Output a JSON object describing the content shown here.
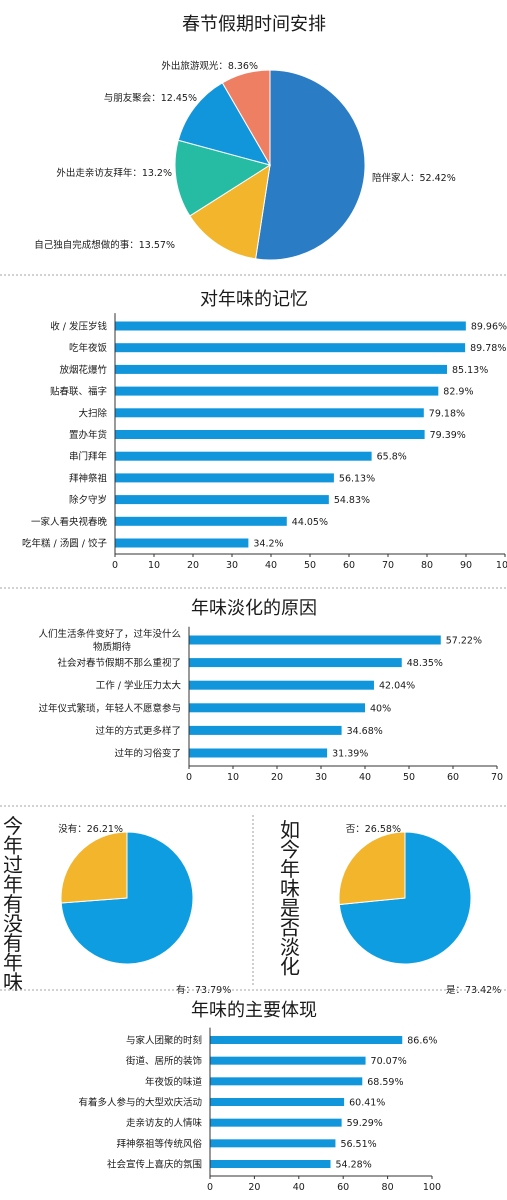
{
  "colors": {
    "blue_dark": "#2a7cc4",
    "blue_bar": "#1296db",
    "blue_pie": "#0e9de0",
    "yellow": "#f2b52c",
    "teal": "#26bba3",
    "salmon": "#ee7f62",
    "divider": "#888888"
  },
  "chart_data": [
    {
      "type": "pie",
      "title": "春节假期时间安排",
      "slices": [
        {
          "label": "陪伴家人",
          "value": 52.42,
          "text": "陪伴家人：52.42%",
          "color": "#2a7cc4"
        },
        {
          "label": "自己独自完成想做的事",
          "value": 13.57,
          "text": "自己独自完成想做的事：13.57%",
          "color": "#f2b52c"
        },
        {
          "label": "外出走亲访友拜年",
          "value": 13.2,
          "text": "外出走亲访友拜年：13.2%",
          "color": "#26bba3"
        },
        {
          "label": "与朋友聚会",
          "value": 12.45,
          "text": "与朋友聚会：12.45%",
          "color": "#1296db"
        },
        {
          "label": "外出旅游观光",
          "value": 8.36,
          "text": "外出旅游观光：8.36%",
          "color": "#ee7f62"
        }
      ]
    },
    {
      "type": "bar",
      "orientation": "horizontal",
      "title": "对年味的记忆",
      "categories": [
        "收 / 发压岁钱",
        "吃年夜饭",
        "放烟花爆竹",
        "贴春联、福字",
        "大扫除",
        "置办年货",
        "串门拜年",
        "拜神祭祖",
        "除夕守岁",
        "一家人看央视春晚",
        "吃年糕 / 汤圆 / 饺子"
      ],
      "values": [
        89.96,
        89.78,
        85.13,
        82.9,
        79.18,
        79.39,
        65.8,
        56.13,
        54.83,
        44.05,
        34.2
      ],
      "value_labels": [
        "89.96%",
        "89.78%",
        "85.13%",
        "82.9%",
        "79.18%",
        "79.39%",
        "65.8%",
        "56.13%",
        "54.83%",
        "44.05%",
        "34.2%"
      ],
      "xlim": [
        0,
        100
      ],
      "ticks": [
        "0",
        "10",
        "20",
        "30",
        "40",
        "50",
        "60",
        "70",
        "80",
        "90",
        "100"
      ],
      "grid": false
    },
    {
      "type": "bar",
      "orientation": "horizontal",
      "title": "年味淡化的原因",
      "categories": [
        "人们生活条件变好了，过年没什么物质期待",
        "社会对春节假期不那么重视了",
        "工作 / 学业压力太大",
        "过年仪式繁琐，年轻人不愿意参与",
        "过年的方式更多样了",
        "过年的习俗变了"
      ],
      "category_lines": [
        [
          "人们生活条件变好了，过年没什么",
          "物质期待"
        ],
        [
          "社会对春节假期不那么重视了"
        ],
        [
          "工作 / 学业压力太大"
        ],
        [
          "过年仪式繁琐，年轻人不愿意参与"
        ],
        [
          "过年的方式更多样了"
        ],
        [
          "过年的习俗变了"
        ]
      ],
      "values": [
        57.22,
        48.35,
        42.04,
        40,
        34.68,
        31.39
      ],
      "value_labels": [
        "57.22%",
        "48.35%",
        "42.04%",
        "40%",
        "34.68%",
        "31.39%"
      ],
      "xlim": [
        0,
        70
      ],
      "ticks": [
        "0",
        "10",
        "20",
        "30",
        "40",
        "50",
        "60",
        "70"
      ],
      "grid": false
    },
    {
      "type": "pie",
      "title": "今年过年有没有年味",
      "slices": [
        {
          "label": "有",
          "value": 73.79,
          "text": "有：73.79%",
          "color": "#0e9de0"
        },
        {
          "label": "没有",
          "value": 26.21,
          "text": "没有：26.21%",
          "color": "#f2b52c"
        }
      ]
    },
    {
      "type": "pie",
      "title": "如今年味是否淡化",
      "slices": [
        {
          "label": "是",
          "value": 73.42,
          "text": "是：73.42%",
          "color": "#0e9de0"
        },
        {
          "label": "否",
          "value": 26.58,
          "text": "否：26.58%",
          "color": "#f2b52c"
        }
      ]
    },
    {
      "type": "bar",
      "orientation": "horizontal",
      "title": "年味的主要体现",
      "categories": [
        "与家人团聚的时刻",
        "街道、居所的装饰",
        "年夜饭的味道",
        "有着多人参与的大型欢庆活动",
        "走亲访友的人情味",
        "拜神祭祖等传统风俗",
        "社会宣传上喜庆的氛围"
      ],
      "values": [
        86.6,
        70.07,
        68.59,
        60.41,
        59.29,
        56.51,
        54.28
      ],
      "value_labels": [
        "86.6%",
        "70.07%",
        "68.59%",
        "60.41%",
        "59.29%",
        "56.51%",
        "54.28%"
      ],
      "xlim": [
        0,
        100
      ],
      "ticks": [
        "0",
        "20",
        "40",
        "60",
        "80",
        "100"
      ],
      "grid": false
    }
  ]
}
